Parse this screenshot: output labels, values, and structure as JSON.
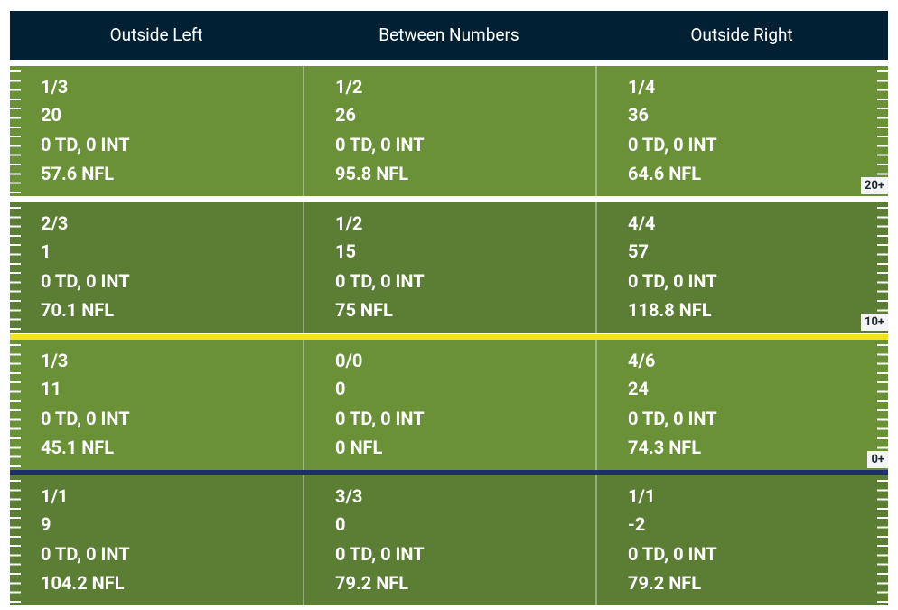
{
  "header": [
    "Outside Left",
    "Between Numbers",
    "Outside Right"
  ],
  "rows": [
    {
      "label": "20+",
      "cells": [
        [
          "1/3",
          "20",
          "0 TD, 0 INT",
          "57.6 NFL"
        ],
        [
          "1/2",
          "26",
          "0 TD, 0 INT",
          "95.8 NFL"
        ],
        [
          "1/4",
          "36",
          "0 TD, 0 INT",
          "64.6 NFL"
        ]
      ]
    },
    {
      "label": "10+",
      "cells": [
        [
          "2/3",
          "1",
          "0 TD, 0 INT",
          "70.1 NFL"
        ],
        [
          "1/2",
          "15",
          "0 TD, 0 INT",
          "75 NFL"
        ],
        [
          "4/4",
          "57",
          "0 TD, 0 INT",
          "118.8 NFL"
        ]
      ]
    },
    {
      "label": "0+",
      "cells": [
        [
          "1/3",
          "11",
          "0 TD, 0 INT",
          "45.1 NFL"
        ],
        [
          "0/0",
          "0",
          "0 TD, 0 INT",
          "0 NFL"
        ],
        [
          "4/6",
          "24",
          "0 TD, 0 INT",
          "74.3 NFL"
        ]
      ]
    },
    {
      "cells": [
        [
          "1/1",
          "9",
          "0 TD, 0 INT",
          "104.2 NFL"
        ],
        [
          "3/3",
          "0",
          "0 TD, 0 INT",
          "79.2 NFL"
        ],
        [
          "1/1",
          "-2",
          "0 TD, 0 INT",
          "79.2 NFL"
        ]
      ]
    }
  ]
}
